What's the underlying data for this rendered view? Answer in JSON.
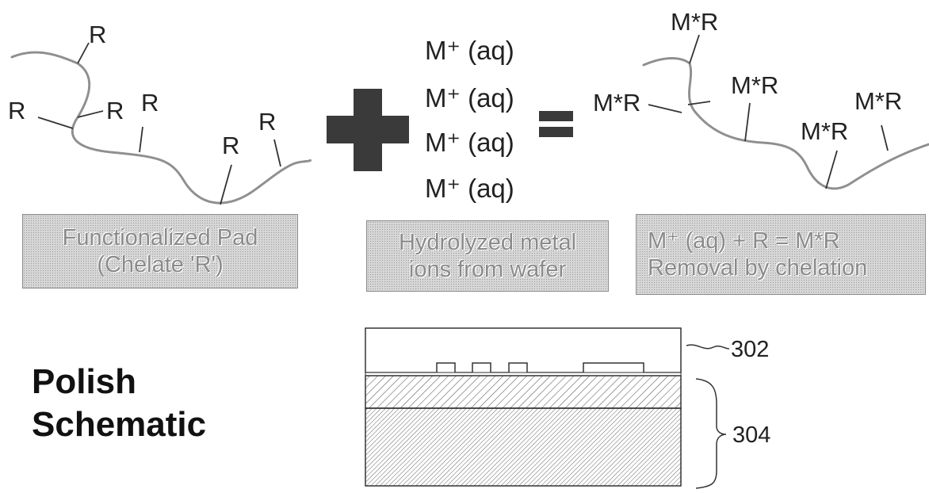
{
  "pad": {
    "chelate_labels": [
      "R",
      "R",
      "R",
      "R",
      "R",
      "R"
    ],
    "caption_line1": "Functionalized Pad",
    "caption_line2": "(Chelate 'R')"
  },
  "ions": {
    "items": [
      "M⁺ (aq)",
      "M⁺ (aq)",
      "M⁺ (aq)",
      "M⁺ (aq)"
    ],
    "caption_line1": "Hydrolyzed metal",
    "caption_line2": "ions from wafer"
  },
  "result": {
    "chelated_labels": [
      "M*R",
      "M*R",
      "M*R",
      "M*R",
      "M*R"
    ],
    "caption_line1": "M⁺ (aq) + R = M*R",
    "caption_line2": "Removal by chelation"
  },
  "schematic": {
    "title_line1": "Polish",
    "title_line2": "Schematic",
    "ref_pad": "302",
    "ref_wafer": "304"
  },
  "colors": {
    "chain": "#8f8f8f",
    "operator": "#3a3a3a",
    "box_fill": "#d6d6d6"
  }
}
